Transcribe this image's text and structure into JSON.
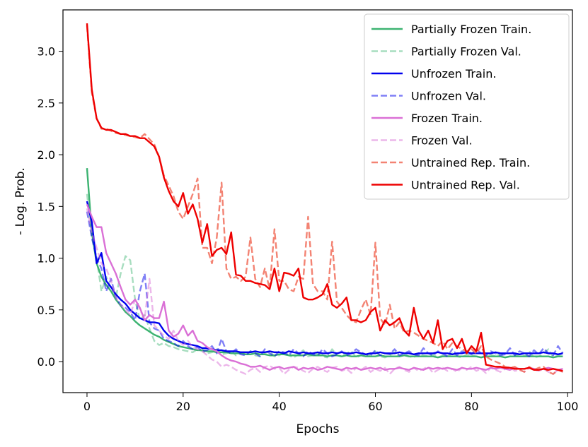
{
  "chart_data": {
    "type": "line",
    "title": "",
    "xlabel": "Epochs",
    "ylabel": "- Log. Prob.",
    "xlim": [
      -5,
      101
    ],
    "ylim": [
      -0.3,
      3.4
    ],
    "xticks": [
      0,
      20,
      40,
      60,
      80,
      100
    ],
    "yticks": [
      0.0,
      0.5,
      1.0,
      1.5,
      2.0,
      2.5,
      3.0
    ],
    "xtick_labels": [
      "0",
      "20",
      "40",
      "60",
      "80",
      "100"
    ],
    "ytick_labels": [
      "0.0",
      "0.5",
      "1.0",
      "1.5",
      "2.0",
      "2.5",
      "3.0"
    ],
    "grid": false,
    "legend_position": "top-right",
    "x_step": 1,
    "series": [
      {
        "name": "Partially Frozen Train.",
        "color": "#3cb371",
        "style": "solid",
        "opacity": 1.0,
        "values": [
          1.87,
          1.25,
          0.95,
          0.82,
          0.74,
          0.68,
          0.6,
          0.54,
          0.48,
          0.44,
          0.39,
          0.35,
          0.32,
          0.29,
          0.26,
          0.24,
          0.21,
          0.19,
          0.17,
          0.15,
          0.14,
          0.13,
          0.12,
          0.11,
          0.11,
          0.1,
          0.1,
          0.09,
          0.09,
          0.09,
          0.08,
          0.08,
          0.08,
          0.07,
          0.07,
          0.08,
          0.07,
          0.07,
          0.06,
          0.06,
          0.07,
          0.07,
          0.06,
          0.06,
          0.06,
          0.06,
          0.07,
          0.06,
          0.06,
          0.06,
          0.05,
          0.06,
          0.06,
          0.05,
          0.06,
          0.05,
          0.05,
          0.06,
          0.05,
          0.05,
          0.05,
          0.06,
          0.05,
          0.05,
          0.05,
          0.05,
          0.06,
          0.05,
          0.05,
          0.05,
          0.05,
          0.05,
          0.05,
          0.04,
          0.05,
          0.05,
          0.05,
          0.05,
          0.05,
          0.05,
          0.05,
          0.05,
          0.04,
          0.05,
          0.05,
          0.05,
          0.05,
          0.04,
          0.05,
          0.05,
          0.05,
          0.05,
          0.05,
          0.05,
          0.05,
          0.05,
          0.05,
          0.04,
          0.05,
          0.05
        ]
      },
      {
        "name": "Partially Frozen Val.",
        "color": "#3cb371",
        "style": "dashed",
        "opacity": 0.45,
        "values": [
          1.62,
          1.2,
          1.0,
          0.68,
          0.82,
          0.7,
          0.62,
          0.85,
          1.02,
          0.98,
          0.6,
          0.4,
          0.45,
          0.32,
          0.2,
          0.16,
          0.18,
          0.15,
          0.14,
          0.12,
          0.11,
          0.1,
          0.09,
          0.12,
          0.1,
          0.08,
          0.09,
          0.12,
          0.07,
          0.08,
          0.1,
          0.06,
          0.08,
          0.07,
          0.1,
          0.06,
          0.05,
          0.08,
          0.1,
          0.05,
          0.06,
          0.09,
          0.06,
          0.04,
          0.07,
          0.11,
          0.05,
          0.06,
          0.08,
          0.05,
          0.04,
          0.12,
          0.06,
          0.05,
          0.08,
          0.1,
          0.04,
          0.06,
          0.05,
          0.07,
          0.1,
          0.05,
          0.04,
          0.06,
          0.09,
          0.05,
          0.07,
          0.05,
          0.04,
          0.08,
          0.06,
          0.05,
          0.07,
          0.04,
          0.06,
          0.05,
          0.08,
          0.05,
          0.04,
          0.07,
          0.06,
          0.05,
          0.04,
          0.06,
          0.07,
          0.05,
          0.08,
          0.04,
          0.05,
          0.06,
          0.07,
          0.05,
          0.1,
          0.04,
          0.05,
          0.08,
          0.12,
          0.04,
          0.06,
          0.08
        ]
      },
      {
        "name": "Unfrozen Train.",
        "color": "#0000ee",
        "style": "solid",
        "opacity": 1.0,
        "values": [
          1.55,
          1.35,
          0.95,
          1.05,
          0.78,
          0.72,
          0.65,
          0.6,
          0.56,
          0.5,
          0.46,
          0.42,
          0.4,
          0.38,
          0.38,
          0.37,
          0.3,
          0.25,
          0.22,
          0.2,
          0.18,
          0.17,
          0.16,
          0.15,
          0.13,
          0.13,
          0.12,
          0.11,
          0.11,
          0.1,
          0.1,
          0.1,
          0.09,
          0.09,
          0.09,
          0.1,
          0.09,
          0.09,
          0.1,
          0.09,
          0.09,
          0.08,
          0.1,
          0.09,
          0.08,
          0.09,
          0.08,
          0.08,
          0.09,
          0.08,
          0.08,
          0.09,
          0.08,
          0.09,
          0.08,
          0.08,
          0.09,
          0.08,
          0.07,
          0.08,
          0.08,
          0.09,
          0.08,
          0.08,
          0.08,
          0.09,
          0.08,
          0.08,
          0.07,
          0.08,
          0.08,
          0.08,
          0.08,
          0.09,
          0.08,
          0.08,
          0.07,
          0.08,
          0.08,
          0.09,
          0.08,
          0.08,
          0.08,
          0.08,
          0.08,
          0.09,
          0.08,
          0.08,
          0.08,
          0.08,
          0.07,
          0.08,
          0.08,
          0.08,
          0.08,
          0.09,
          0.08,
          0.08,
          0.07,
          0.08
        ]
      },
      {
        "name": "Unfrozen Val.",
        "color": "#0000ee",
        "style": "dashed",
        "opacity": 0.5,
        "values": [
          1.45,
          1.2,
          1.0,
          0.9,
          0.68,
          0.8,
          0.62,
          0.55,
          0.52,
          0.48,
          0.4,
          0.68,
          0.85,
          0.38,
          0.32,
          0.3,
          0.22,
          0.2,
          0.18,
          0.15,
          0.2,
          0.15,
          0.12,
          0.14,
          0.1,
          0.11,
          0.15,
          0.08,
          0.22,
          0.1,
          0.08,
          0.12,
          0.07,
          0.06,
          0.1,
          0.08,
          0.05,
          0.12,
          0.08,
          0.05,
          0.1,
          0.09,
          0.06,
          0.12,
          0.08,
          0.05,
          0.1,
          0.07,
          0.06,
          0.12,
          0.08,
          0.05,
          0.07,
          0.1,
          0.06,
          0.08,
          0.12,
          0.09,
          0.07,
          0.06,
          0.11,
          0.06,
          0.08,
          0.07,
          0.12,
          0.06,
          0.08,
          0.1,
          0.07,
          0.06,
          0.13,
          0.08,
          0.06,
          0.1,
          0.08,
          0.05,
          0.12,
          0.06,
          0.1,
          0.08,
          0.07,
          0.12,
          0.08,
          0.06,
          0.1,
          0.08,
          0.06,
          0.07,
          0.13,
          0.06,
          0.1,
          0.08,
          0.05,
          0.11,
          0.07,
          0.13,
          0.08,
          0.06,
          0.15,
          0.08
        ]
      },
      {
        "name": "Frozen Train.",
        "color": "#da70d6",
        "style": "solid",
        "opacity": 1.0,
        "values": [
          1.52,
          1.4,
          1.3,
          1.3,
          1.05,
          0.95,
          0.85,
          0.72,
          0.6,
          0.55,
          0.6,
          0.52,
          0.4,
          0.45,
          0.42,
          0.42,
          0.58,
          0.3,
          0.24,
          0.27,
          0.35,
          0.25,
          0.3,
          0.2,
          0.18,
          0.14,
          0.12,
          0.1,
          0.06,
          0.03,
          0.01,
          0.0,
          -0.02,
          -0.03,
          -0.05,
          -0.05,
          -0.04,
          -0.06,
          -0.08,
          -0.06,
          -0.05,
          -0.07,
          -0.06,
          -0.05,
          -0.08,
          -0.06,
          -0.07,
          -0.06,
          -0.08,
          -0.07,
          -0.05,
          -0.06,
          -0.07,
          -0.08,
          -0.06,
          -0.07,
          -0.06,
          -0.08,
          -0.07,
          -0.06,
          -0.07,
          -0.06,
          -0.08,
          -0.07,
          -0.07,
          -0.06,
          -0.07,
          -0.08,
          -0.06,
          -0.07,
          -0.08,
          -0.06,
          -0.07,
          -0.06,
          -0.07,
          -0.06,
          -0.07,
          -0.08,
          -0.06,
          -0.07,
          -0.07,
          -0.06,
          -0.07,
          -0.08,
          -0.06,
          -0.07,
          -0.06,
          -0.07,
          -0.08,
          -0.06,
          -0.07,
          -0.07,
          -0.06,
          -0.07,
          -0.08,
          -0.07,
          -0.06,
          -0.07,
          -0.08,
          -0.07
        ]
      },
      {
        "name": "Frozen Val.",
        "color": "#da70d6",
        "style": "dashed",
        "opacity": 0.5,
        "values": [
          1.48,
          1.25,
          1.1,
          0.95,
          0.9,
          0.78,
          0.62,
          0.55,
          0.5,
          0.45,
          0.6,
          0.5,
          0.42,
          0.8,
          0.35,
          0.3,
          0.25,
          0.22,
          0.3,
          0.2,
          0.16,
          0.2,
          0.14,
          0.12,
          0.1,
          0.06,
          0.02,
          0.0,
          -0.05,
          -0.03,
          -0.05,
          -0.08,
          -0.1,
          -0.12,
          -0.08,
          -0.06,
          -0.1,
          -0.05,
          -0.04,
          -0.07,
          -0.06,
          -0.12,
          -0.08,
          -0.05,
          -0.06,
          -0.09,
          -0.11,
          -0.07,
          -0.05,
          -0.08,
          -0.1,
          -0.06,
          -0.05,
          -0.09,
          -0.07,
          -0.11,
          -0.06,
          -0.08,
          -0.05,
          -0.1,
          -0.07,
          -0.09,
          -0.06,
          -0.12,
          -0.07,
          -0.05,
          -0.08,
          -0.1,
          -0.06,
          -0.09,
          -0.07,
          -0.05,
          -0.11,
          -0.08,
          -0.06,
          -0.09,
          -0.07,
          -0.1,
          -0.06,
          -0.08,
          -0.05,
          -0.09,
          -0.07,
          -0.11,
          -0.06,
          -0.08,
          -0.1,
          -0.07,
          -0.05,
          -0.09,
          -0.08,
          -0.1,
          -0.06,
          -0.08,
          -0.09,
          -0.07,
          -0.1,
          -0.12,
          -0.08,
          -0.1
        ]
      },
      {
        "name": "Untrained Rep. Train.",
        "color": "#f06450",
        "style": "dashed",
        "opacity": 0.8,
        "values": [
          3.25,
          2.6,
          2.35,
          2.25,
          2.25,
          2.23,
          2.21,
          2.2,
          2.19,
          2.18,
          2.17,
          2.16,
          2.2,
          2.15,
          2.1,
          1.98,
          1.8,
          1.7,
          1.6,
          1.45,
          1.38,
          1.5,
          1.62,
          1.77,
          1.1,
          1.1,
          0.95,
          1.2,
          1.73,
          0.9,
          0.8,
          0.82,
          0.78,
          0.82,
          1.2,
          0.8,
          0.72,
          0.9,
          0.7,
          1.28,
          0.78,
          0.78,
          0.7,
          0.68,
          0.82,
          0.8,
          1.4,
          0.75,
          0.68,
          0.68,
          0.6,
          1.16,
          0.58,
          0.52,
          0.45,
          0.4,
          0.38,
          0.5,
          0.6,
          0.45,
          1.15,
          0.42,
          0.35,
          0.55,
          0.32,
          0.38,
          0.28,
          0.3,
          0.28,
          0.25,
          0.22,
          0.2,
          0.18,
          0.15,
          0.2,
          0.12,
          0.18,
          0.15,
          0.12,
          0.1,
          0.12,
          0.08,
          0.15,
          0.05,
          0.02,
          0.0,
          -0.02,
          -0.05,
          -0.06,
          -0.05,
          -0.08,
          -0.1,
          -0.05,
          -0.08,
          -0.06,
          -0.05,
          -0.1,
          -0.12,
          -0.08,
          -0.1
        ]
      },
      {
        "name": "Untrained Rep. Val.",
        "color": "#ee0000",
        "style": "solid",
        "opacity": 1.0,
        "values": [
          3.27,
          2.63,
          2.35,
          2.26,
          2.24,
          2.24,
          2.22,
          2.2,
          2.2,
          2.18,
          2.18,
          2.16,
          2.16,
          2.12,
          2.08,
          1.98,
          1.78,
          1.65,
          1.55,
          1.5,
          1.63,
          1.43,
          1.52,
          1.38,
          1.15,
          1.33,
          1.02,
          1.08,
          1.1,
          1.04,
          1.25,
          0.84,
          0.83,
          0.78,
          0.78,
          0.76,
          0.75,
          0.74,
          0.7,
          0.9,
          0.68,
          0.86,
          0.85,
          0.83,
          0.9,
          0.62,
          0.6,
          0.6,
          0.62,
          0.65,
          0.75,
          0.55,
          0.52,
          0.56,
          0.62,
          0.4,
          0.4,
          0.38,
          0.4,
          0.48,
          0.52,
          0.3,
          0.4,
          0.35,
          0.38,
          0.42,
          0.3,
          0.25,
          0.52,
          0.3,
          0.22,
          0.3,
          0.18,
          0.4,
          0.12,
          0.2,
          0.22,
          0.13,
          0.22,
          0.08,
          0.15,
          0.1,
          0.28,
          -0.03,
          -0.04,
          -0.05,
          -0.05,
          -0.06,
          -0.06,
          -0.07,
          -0.07,
          -0.07,
          -0.06,
          -0.08,
          -0.08,
          -0.07,
          -0.08,
          -0.07,
          -0.08,
          -0.09
        ]
      }
    ]
  }
}
